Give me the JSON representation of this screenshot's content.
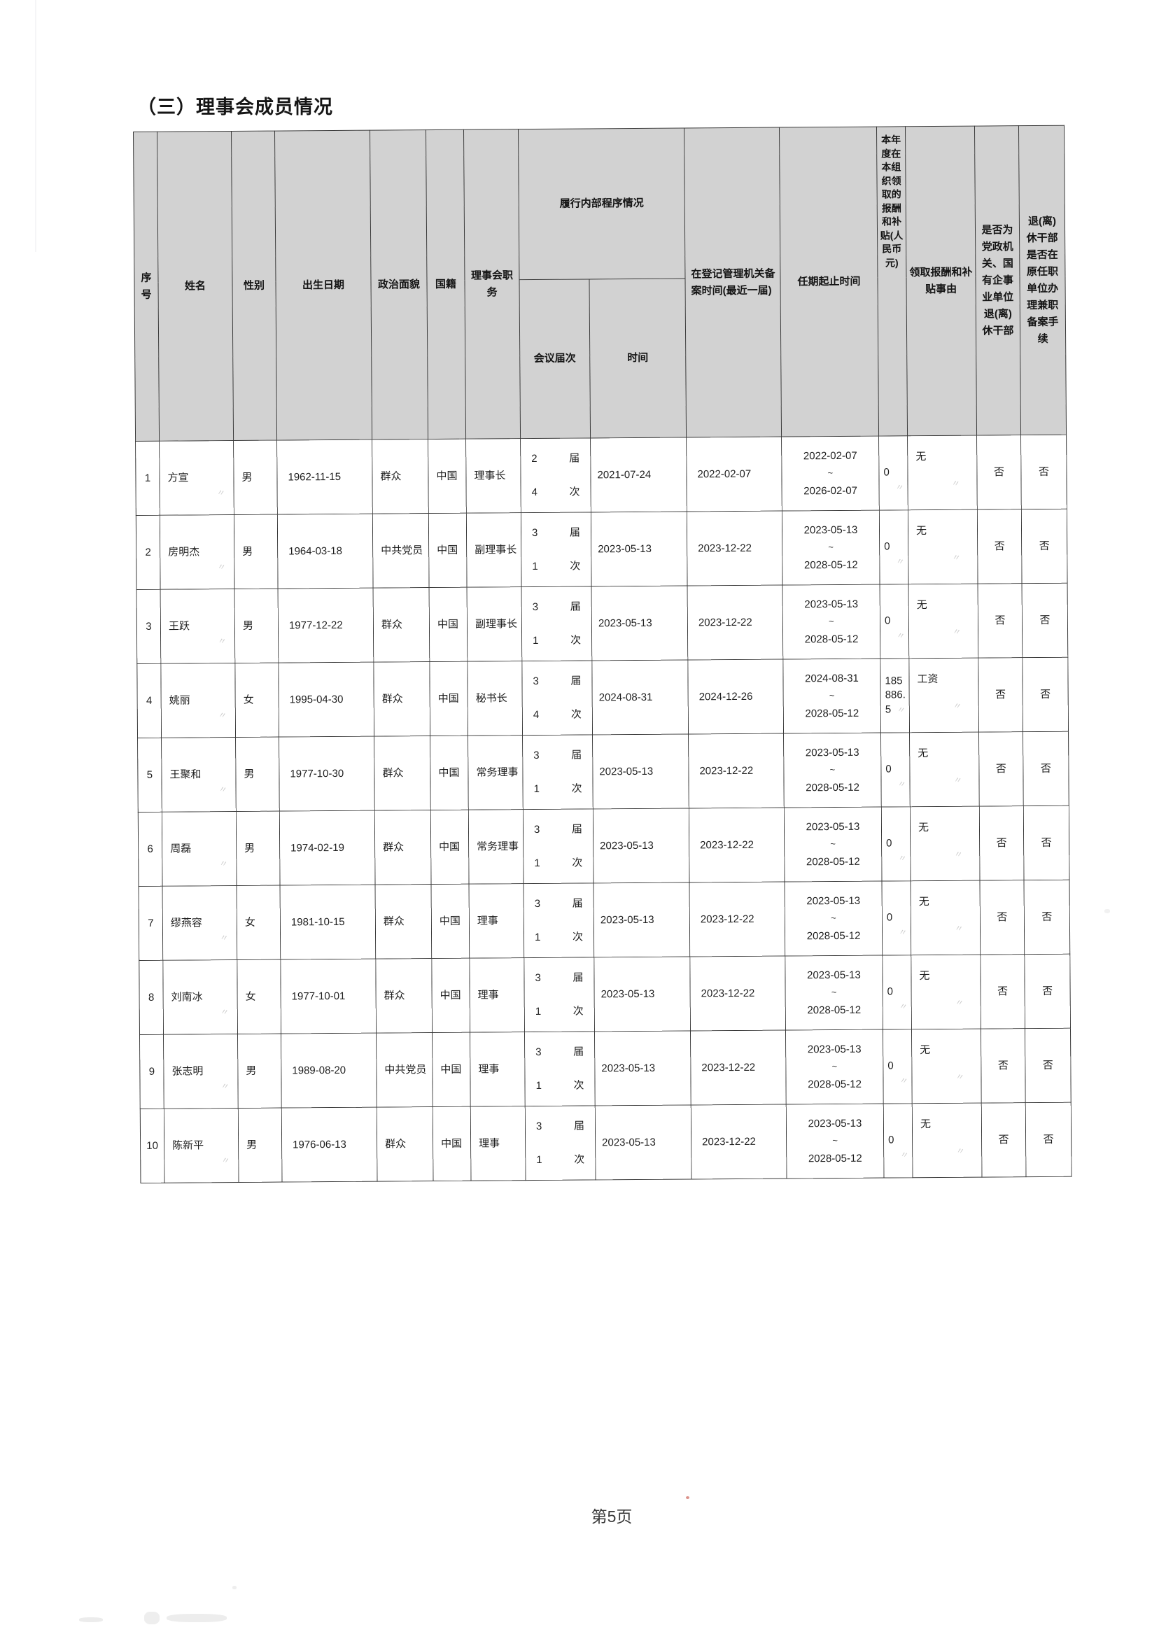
{
  "page": {
    "title": "（三）理事会成员情况",
    "footer": "第5页"
  },
  "colors": {
    "header_bg": "#d2d2d2",
    "border": "#383838",
    "paper": "#ffffff"
  },
  "table": {
    "headers": {
      "no": "序号",
      "name": "姓名",
      "gender": "性别",
      "birth_date": "出生日期",
      "political_status": "政治面貌",
      "nationality": "国籍",
      "position": "理事会职务",
      "internal_procedure": "履行内部程序情况",
      "meeting_session": "会议届次",
      "time": "时间",
      "filing_time": "在登记管理机关备案时间(最近一届)",
      "term": "任期起止时间",
      "pay": "本年度在本组织领取的报酬和补贴(人民币元)",
      "pay_reason": "领取报酬和补贴事由",
      "retired_cadre": "是否为党政机关、国有企事业单位退(离)休干部",
      "record_filed": "退(离)休干部是否在原任职单位办理兼职备案手续"
    },
    "labels": {
      "session_unit": "届",
      "meeting_unit": "次",
      "term_separator": "~"
    },
    "rows": [
      {
        "no": "1",
        "name": "方宣",
        "gender": "男",
        "birth_date": "1962-11-15",
        "political_status": "群众",
        "nationality": "中国",
        "position": "理事长",
        "session_number": "2",
        "meeting_number": "4",
        "meeting_time": "2021-07-24",
        "filing_time": "2022-02-07",
        "term_start": "2022-02-07",
        "term_end": "2026-02-07",
        "pay": "0",
        "pay_reason": "无",
        "is_retired_cadre": "否",
        "record_filed": "否"
      },
      {
        "no": "2",
        "name": "房明杰",
        "gender": "男",
        "birth_date": "1964-03-18",
        "political_status": "中共党员",
        "nationality": "中国",
        "position": "副理事长",
        "session_number": "3",
        "meeting_number": "1",
        "meeting_time": "2023-05-13",
        "filing_time": "2023-12-22",
        "term_start": "2023-05-13",
        "term_end": "2028-05-12",
        "pay": "0",
        "pay_reason": "无",
        "is_retired_cadre": "否",
        "record_filed": "否"
      },
      {
        "no": "3",
        "name": "王跃",
        "gender": "男",
        "birth_date": "1977-12-22",
        "political_status": "群众",
        "nationality": "中国",
        "position": "副理事长",
        "session_number": "3",
        "meeting_number": "1",
        "meeting_time": "2023-05-13",
        "filing_time": "2023-12-22",
        "term_start": "2023-05-13",
        "term_end": "2028-05-12",
        "pay": "0",
        "pay_reason": "无",
        "is_retired_cadre": "否",
        "record_filed": "否"
      },
      {
        "no": "4",
        "name": "姚丽",
        "gender": "女",
        "birth_date": "1995-04-30",
        "political_status": "群众",
        "nationality": "中国",
        "position": "秘书长",
        "session_number": "3",
        "meeting_number": "4",
        "meeting_time": "2024-08-31",
        "filing_time": "2024-12-26",
        "term_start": "2024-08-31",
        "term_end": "2028-05-12",
        "pay": "185886.5",
        "pay_reason": "工资",
        "is_retired_cadre": "否",
        "record_filed": "否"
      },
      {
        "no": "5",
        "name": "王聚和",
        "gender": "男",
        "birth_date": "1977-10-30",
        "political_status": "群众",
        "nationality": "中国",
        "position": "常务理事",
        "session_number": "3",
        "meeting_number": "1",
        "meeting_time": "2023-05-13",
        "filing_time": "2023-12-22",
        "term_start": "2023-05-13",
        "term_end": "2028-05-12",
        "pay": "0",
        "pay_reason": "无",
        "is_retired_cadre": "否",
        "record_filed": "否"
      },
      {
        "no": "6",
        "name": "周磊",
        "gender": "男",
        "birth_date": "1974-02-19",
        "political_status": "群众",
        "nationality": "中国",
        "position": "常务理事",
        "session_number": "3",
        "meeting_number": "1",
        "meeting_time": "2023-05-13",
        "filing_time": "2023-12-22",
        "term_start": "2023-05-13",
        "term_end": "2028-05-12",
        "pay": "0",
        "pay_reason": "无",
        "is_retired_cadre": "否",
        "record_filed": "否"
      },
      {
        "no": "7",
        "name": "缪燕容",
        "gender": "女",
        "birth_date": "1981-10-15",
        "political_status": "群众",
        "nationality": "中国",
        "position": "理事",
        "session_number": "3",
        "meeting_number": "1",
        "meeting_time": "2023-05-13",
        "filing_time": "2023-12-22",
        "term_start": "2023-05-13",
        "term_end": "2028-05-12",
        "pay": "0",
        "pay_reason": "无",
        "is_retired_cadre": "否",
        "record_filed": "否"
      },
      {
        "no": "8",
        "name": "刘南冰",
        "gender": "女",
        "birth_date": "1977-10-01",
        "political_status": "群众",
        "nationality": "中国",
        "position": "理事",
        "session_number": "3",
        "meeting_number": "1",
        "meeting_time": "2023-05-13",
        "filing_time": "2023-12-22",
        "term_start": "2023-05-13",
        "term_end": "2028-05-12",
        "pay": "0",
        "pay_reason": "无",
        "is_retired_cadre": "否",
        "record_filed": "否"
      },
      {
        "no": "9",
        "name": "张志明",
        "gender": "男",
        "birth_date": "1989-08-20",
        "political_status": "中共党员",
        "nationality": "中国",
        "position": "理事",
        "session_number": "3",
        "meeting_number": "1",
        "meeting_time": "2023-05-13",
        "filing_time": "2023-12-22",
        "term_start": "2023-05-13",
        "term_end": "2028-05-12",
        "pay": "0",
        "pay_reason": "无",
        "is_retired_cadre": "否",
        "record_filed": "否"
      },
      {
        "no": "10",
        "name": "陈新平",
        "gender": "男",
        "birth_date": "1976-06-13",
        "political_status": "群众",
        "nationality": "中国",
        "position": "理事",
        "session_number": "3",
        "meeting_number": "1",
        "meeting_time": "2023-05-13",
        "filing_time": "2023-12-22",
        "term_start": "2023-05-13",
        "term_end": "2028-05-12",
        "pay": "0",
        "pay_reason": "无",
        "is_retired_cadre": "否",
        "record_filed": "否"
      }
    ]
  }
}
